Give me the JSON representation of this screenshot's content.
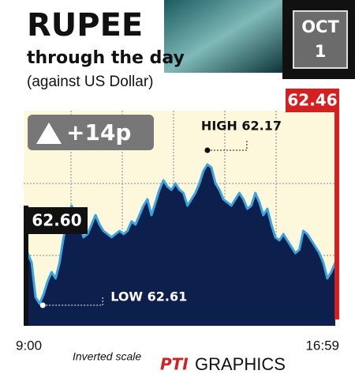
{
  "chart_data": {
    "type": "area",
    "title": "RUPEE",
    "subtitle": "through the day",
    "note": "(against US Dollar)",
    "date": [
      "OCT",
      "1"
    ],
    "change": "+14p",
    "start": {
      "value": 62.6,
      "label": "62.60"
    },
    "end": 62.46,
    "annotations": {
      "high": "HIGH 62.17",
      "low": "LOW 62.61"
    },
    "scale_note": "Inverted scale",
    "source": [
      "PTI",
      "GRAPHICS"
    ],
    "categories": [
      "9:00",
      null,
      null,
      null,
      null,
      null,
      null,
      null,
      null,
      null,
      null,
      null,
      null,
      null,
      null,
      null,
      null,
      null,
      null,
      null,
      null,
      null,
      null,
      null,
      null,
      null,
      null,
      null,
      null,
      null,
      null,
      null,
      null,
      null,
      null,
      null,
      null,
      null,
      null,
      null,
      null,
      null,
      null,
      null,
      null,
      null,
      null,
      null,
      null,
      null,
      null,
      null,
      null,
      null,
      null,
      null,
      null,
      null,
      null,
      null,
      null,
      null,
      null,
      null,
      null,
      null,
      null,
      null,
      null,
      null,
      null,
      null,
      null,
      null,
      null,
      null,
      null,
      "16:59"
    ],
    "values": [
      62.45,
      62.48,
      62.59,
      62.61,
      62.58,
      62.54,
      62.51,
      62.53,
      62.48,
      62.4,
      62.35,
      62.3,
      62.33,
      62.36,
      62.4,
      62.39,
      62.36,
      62.33,
      62.36,
      62.38,
      62.39,
      62.4,
      62.39,
      62.38,
      62.39,
      62.38,
      62.35,
      62.36,
      62.33,
      62.3,
      62.28,
      62.33,
      62.29,
      62.25,
      62.22,
      62.24,
      62.25,
      62.23,
      62.25,
      62.26,
      62.3,
      62.28,
      62.26,
      62.23,
      62.19,
      62.17,
      62.18,
      62.23,
      62.25,
      62.28,
      62.29,
      62.3,
      62.28,
      62.26,
      62.28,
      62.31,
      62.3,
      62.26,
      62.29,
      62.33,
      62.31,
      62.36,
      62.4,
      62.41,
      62.39,
      62.41,
      62.43,
      62.45,
      62.44,
      62.38,
      62.39,
      62.41,
      62.43,
      62.45,
      62.48,
      62.53,
      62.51,
      62.48
    ],
    "ylim": [
      62.68,
      62.0
    ],
    "inverted": true,
    "color": "#0d1f4d",
    "line_color": "#3ba4e0"
  }
}
